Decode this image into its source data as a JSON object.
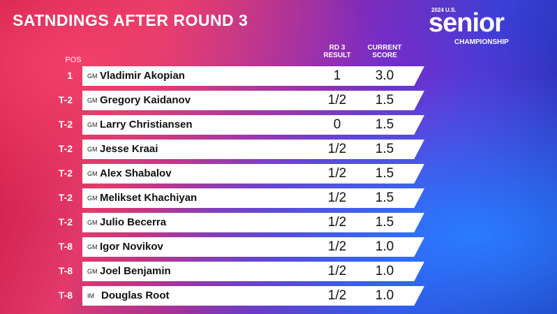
{
  "header": {
    "title": "SATNDINGS AFTER ROUND 3"
  },
  "logo": {
    "year": "2024 U.S.",
    "word": "senior",
    "sub": "CHAMPIONSHIP"
  },
  "table": {
    "columns": {
      "pos": "POS",
      "result": [
        "RD 3",
        "RESULT"
      ],
      "score": [
        "CURRENT",
        "SCORE"
      ]
    },
    "rows": [
      {
        "pos": "1",
        "title": "GM",
        "name": "Vladimir Akopian",
        "result": "1",
        "score": "3.0"
      },
      {
        "pos": "T-2",
        "title": "GM",
        "name": "Gregory Kaidanov",
        "result": "1/2",
        "score": "1.5"
      },
      {
        "pos": "T-2",
        "title": "GM",
        "name": "Larry Christiansen",
        "result": "0",
        "score": "1.5"
      },
      {
        "pos": "T-2",
        "title": "GM",
        "name": "Jesse Kraai",
        "result": "1/2",
        "score": "1.5"
      },
      {
        "pos": "T-2",
        "title": "GM",
        "name": "Alex Shabalov",
        "result": "1/2",
        "score": "1.5"
      },
      {
        "pos": "T-2",
        "title": "GM",
        "name": "Melikset Khachiyan",
        "result": "1/2",
        "score": "1.5"
      },
      {
        "pos": "T-2",
        "title": "GM",
        "name": "Julio Becerra",
        "result": "1/2",
        "score": "1.5"
      },
      {
        "pos": "T-8",
        "title": "GM",
        "name": "Igor Novikov",
        "result": "1/2",
        "score": "1.0"
      },
      {
        "pos": "T-8",
        "title": "GM",
        "name": "Joel Benjamin",
        "result": "1/2",
        "score": "1.0"
      },
      {
        "pos": "T-8",
        "title": "IM",
        "name": "Douglas Root",
        "result": "1/2",
        "score": "1.0"
      }
    ]
  }
}
